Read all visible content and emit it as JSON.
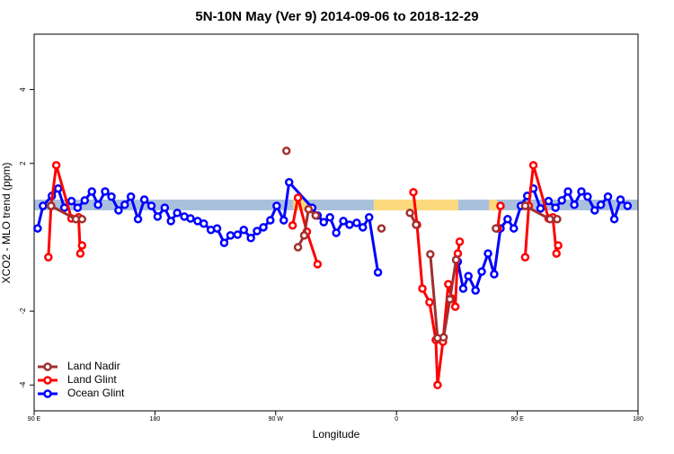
{
  "chart_data": {
    "type": "line",
    "title": "5N-10N May (Ver 9)   2014-09-06 to 2018-12-29",
    "x_label": "Longitude",
    "y_label": "XCO2 - MLO trend (ppm)",
    "xlim": [
      90,
      540
    ],
    "xticks": [
      {
        "value": 90,
        "label": "90 E"
      },
      180,
      {
        "value": 270,
        "label": "90 W"
      },
      {
        "value": 360,
        "label": "0"
      },
      {
        "value": 450,
        "label": "90 E"
      },
      {
        "value": 540,
        "label": "180"
      }
    ],
    "ylim": [
      -4.7,
      5.5
    ],
    "yticks": [
      -4,
      -2,
      2,
      4
    ],
    "legend": "bottom-left",
    "band": {
      "ylim": [
        0.73,
        1.02
      ],
      "color": "#a9c0dd",
      "highlight_color": "#fdd97d",
      "highlight_x": [
        [
          283,
          293
        ],
        [
          343,
          406
        ],
        [
          429,
          435
        ]
      ]
    },
    "series": [
      {
        "name": "Land Nadir",
        "color": "#a32f2f",
        "x": [
          102.6,
          121.1,
          125.7,
          null,
          278.0,
          null,
          286.6,
          291.2,
          294.5,
          299.8,
          null,
          348.8,
          null,
          370.0,
          374.6,
          null,
          385.2,
          390.6,
          395.1,
          399.8,
          404.4,
          null,
          434.1,
          null,
          455.9,
          474.4,
          479.7
        ],
        "values": [
          0.85,
          0.49,
          0.49,
          null,
          2.34,
          null,
          -0.27,
          0.05,
          0.76,
          0.59,
          null,
          0.24,
          null,
          0.66,
          0.34,
          null,
          -0.46,
          -2.73,
          -2.71,
          -1.68,
          -0.61,
          null,
          0.24,
          null,
          0.85,
          0.49,
          0.49
        ]
      },
      {
        "name": "Land Glint",
        "color": "#ff0000",
        "x": [
          100.6,
          102.6,
          106.5,
          117.8,
          123.1,
          124.4,
          125.7,
          null,
          282.6,
          286.6,
          293.2,
          301.2,
          null,
          372.6,
          375.3,
          379.3,
          384.6,
          389.3,
          390.6,
          394.6,
          398.6,
          401.3,
          403.8,
          405.7,
          407.1,
          null,
          435.4,
          437.5,
          null,
          455.9,
          458.6,
          462.0,
          473.3,
          476.5,
          479.2,
          480.5
        ],
        "values": [
          -0.54,
          0.85,
          1.95,
          0.51,
          0.54,
          -0.44,
          -0.22,
          null,
          0.32,
          1.07,
          0.15,
          -0.73,
          null,
          1.22,
          0.34,
          -1.39,
          -1.76,
          -2.78,
          -4.0,
          -2.83,
          -1.27,
          -1.66,
          -1.88,
          -0.44,
          -0.12,
          null,
          0.24,
          0.85,
          null,
          -0.54,
          0.85,
          1.95,
          0.51,
          0.54,
          -0.44,
          -0.22
        ]
      },
      {
        "name": "Ocean Glint",
        "color": "#0000ff",
        "x": [
          92.6,
          96.6,
          103.2,
          107.9,
          112.5,
          117.8,
          122.4,
          127.7,
          133.0,
          137.6,
          142.9,
          147.6,
          152.9,
          157.5,
          162.1,
          167.4,
          172.1,
          177.4,
          182.0,
          187.3,
          191.9,
          196.6,
          201.9,
          206.5,
          211.8,
          216.4,
          221.7,
          226.3,
          231.6,
          236.3,
          241.6,
          246.2,
          251.5,
          256.1,
          260.8,
          266.0,
          270.7,
          276.0,
          280.0,
          297.2,
          301.2,
          305.8,
          310.4,
          315.1,
          320.4,
          325.0,
          330.3,
          334.9,
          339.6,
          346.2,
          null,
          405.7,
          409.7,
          413.6,
          418.9,
          423.5,
          428.2,
          432.8,
          437.5,
          442.8,
          447.4,
          452.7,
          457.4,
          462.0,
          467.3,
          473.3,
          478.5,
          483.2,
          487.8,
          492.5,
          497.8,
          502.4,
          507.7,
          512.3,
          517.6,
          522.3,
          526.9,
          532.2
        ],
        "values": [
          0.24,
          0.85,
          1.12,
          1.32,
          0.8,
          0.98,
          0.8,
          1.0,
          1.24,
          0.88,
          1.24,
          1.1,
          0.73,
          0.88,
          1.1,
          0.49,
          1.02,
          0.85,
          0.56,
          0.8,
          0.44,
          0.66,
          0.56,
          0.51,
          0.44,
          0.37,
          0.2,
          0.24,
          -0.15,
          0.05,
          0.07,
          0.2,
          -0.02,
          0.17,
          0.27,
          0.46,
          0.85,
          0.46,
          1.49,
          0.8,
          0.59,
          0.41,
          0.54,
          0.12,
          0.44,
          0.34,
          0.39,
          0.27,
          0.54,
          -0.95,
          null,
          -0.66,
          -1.39,
          -1.05,
          -1.44,
          -0.93,
          -0.44,
          -1.0,
          0.24,
          0.49,
          0.24,
          0.85,
          1.12,
          1.32,
          0.78,
          0.98,
          0.8,
          1.0,
          1.24,
          0.88,
          1.24,
          1.1,
          0.73,
          0.88,
          1.1,
          0.49,
          1.02,
          0.85
        ]
      }
    ]
  }
}
